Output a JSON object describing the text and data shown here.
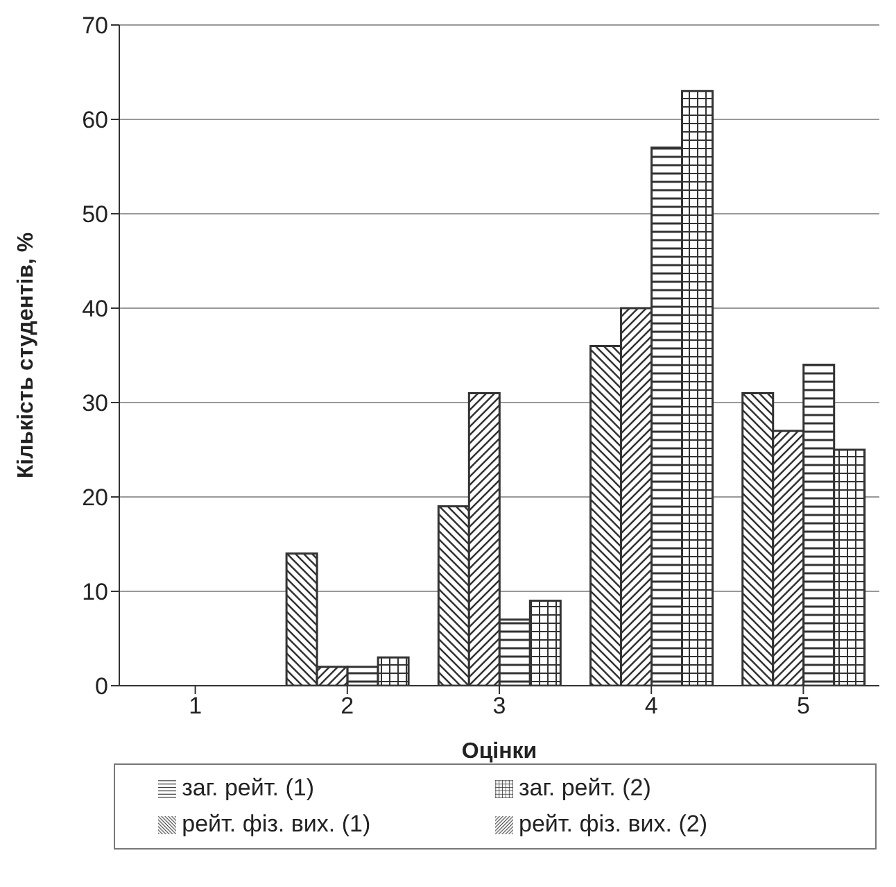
{
  "chart_data": {
    "type": "bar",
    "xlabel": "Оцінки",
    "ylabel": "Кількість студентів, %",
    "categories": [
      "1",
      "2",
      "3",
      "4",
      "5"
    ],
    "series": [
      {
        "name": "рейт. фіз. вих. (1)",
        "color": "#333333",
        "values": [
          0,
          14,
          19,
          36,
          31
        ]
      },
      {
        "name": "рейт. фіз. вих. (2)",
        "color": "#333333",
        "values": [
          0,
          2,
          31,
          40,
          27
        ]
      },
      {
        "name": "заг. рейт. (1)",
        "color": "#333333",
        "values": [
          0,
          2,
          7,
          57,
          34
        ]
      },
      {
        "name": "заг. рейт. (2)",
        "color": "#333333",
        "values": [
          0,
          3,
          9,
          63,
          25
        ]
      }
    ],
    "ylim": [
      0,
      70
    ],
    "yticks": [
      0,
      10,
      20,
      30,
      40,
      50,
      60,
      70
    ],
    "grid": "y",
    "legend": "bottom"
  }
}
